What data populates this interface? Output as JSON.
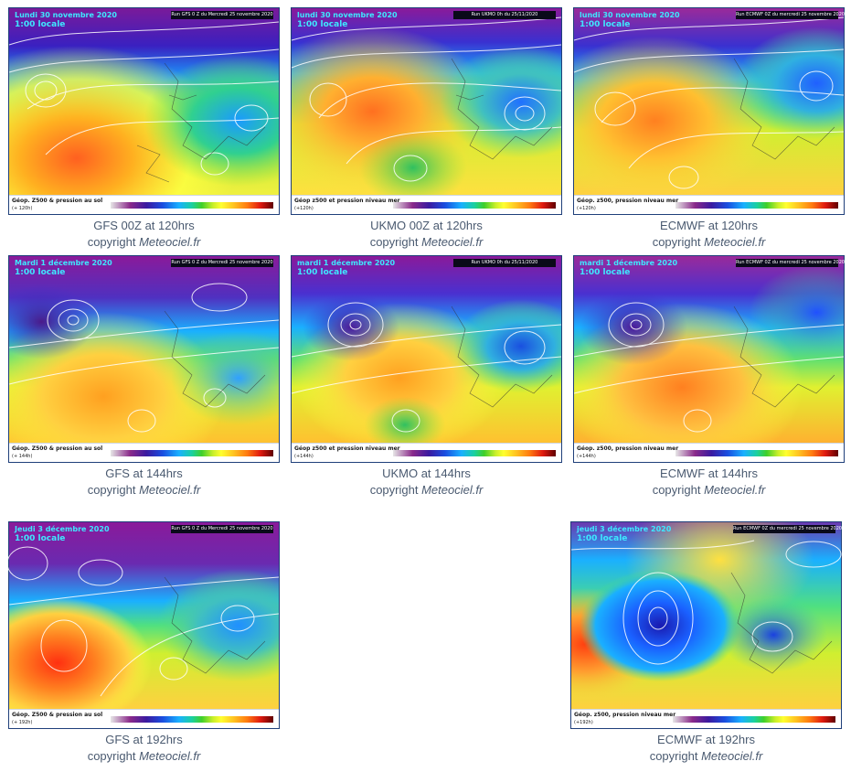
{
  "maps": [
    {
      "id": "gfs120",
      "model": "GFS",
      "date_label": "Lundi 30 novembre 2020",
      "time_label": "1:00 locale",
      "run_label": "Run GFS 0 Z du Mercredi 25 novembre 2020",
      "legend_title": "Géop. Z500 & pression au sol",
      "legend_hour": "(+ 120h)",
      "caption": "GFS 00Z at 120hrs",
      "copyright_prefix": "copyright ",
      "copyright_site": "Meteociel.fr",
      "palette": "gfs"
    },
    {
      "id": "ukmo120",
      "model": "UKMO",
      "date_label": "lundi 30 novembre 2020",
      "time_label": "1:00 locale",
      "run_label": "Run UKMO 0h du 25/11/2020",
      "legend_title": "Géop z500 et pression niveau mer",
      "legend_hour": "(+120h)",
      "caption": "UKMO 00Z at 120hrs",
      "copyright_prefix": "copyright ",
      "copyright_site": "Meteociel.fr",
      "palette": "ukmo"
    },
    {
      "id": "ecmwf120",
      "model": "ECMWF",
      "date_label": "lundi 30 novembre 2020",
      "time_label": "1:00 locale",
      "run_label": "Run ECMWF 0Z du mercredi 25 novembre 2020",
      "legend_title": "Géop. z500, pression niveau mer",
      "legend_hour": "(+120h)",
      "caption": "ECMWF at 120hrs",
      "copyright_prefix": "copyright ",
      "copyright_site": "Meteociel.fr",
      "palette": "ecmwf"
    },
    {
      "id": "gfs144",
      "model": "GFS",
      "date_label": "Mardi 1 décembre 2020",
      "time_label": "1:00 locale",
      "run_label": "Run GFS 0 Z du Mercredi 25 novembre 2020",
      "legend_title": "Géop. Z500 & pression au sol",
      "legend_hour": "(+ 144h)",
      "caption": "GFS at 144hrs",
      "copyright_prefix": "copyright ",
      "copyright_site": "Meteociel.fr",
      "palette": "gfs2"
    },
    {
      "id": "ukmo144",
      "model": "UKMO",
      "date_label": "mardi 1 décembre 2020",
      "time_label": "1:00 locale",
      "run_label": "Run UKMO 0h du 25/11/2020",
      "legend_title": "Géop z500 et pression niveau mer",
      "legend_hour": "(+144h)",
      "caption": "UKMO at 144hrs",
      "copyright_prefix": "copyright ",
      "copyright_site": "Meteociel.fr",
      "palette": "ukmo2"
    },
    {
      "id": "ecmwf144",
      "model": "ECMWF",
      "date_label": "mardi 1 décembre 2020",
      "time_label": "1:00 locale",
      "run_label": "Run ECMWF 0Z du mercredi 25 novembre 2020",
      "legend_title": "Géop. z500, pression niveau mer",
      "legend_hour": "(+144h)",
      "caption": "ECMWF at 144hrs",
      "copyright_prefix": "copyright ",
      "copyright_site": "Meteociel.fr",
      "palette": "ecmwf2"
    },
    {
      "id": "gfs192",
      "model": "GFS",
      "date_label": "Jeudi 3 décembre 2020",
      "time_label": "1:00 locale",
      "run_label": "Run GFS 0 Z du Mercredi 25 novembre 2020",
      "legend_title": "Géop. Z500 & pression au sol",
      "legend_hour": "(+ 192h)",
      "caption": "GFS at 192hrs",
      "copyright_prefix": "copyright ",
      "copyright_site": "Meteociel.fr",
      "palette": "gfs3"
    },
    {
      "id": "ecmwf192",
      "model": "ECMWF",
      "date_label": "jeudi 3 décembre 2020",
      "time_label": "1:00 locale",
      "run_label": "Run ECMWF 0Z du mercredi 25 novembre 2020",
      "legend_title": "Géop. z500, pression niveau mer",
      "legend_hour": "(+192h)",
      "caption": "ECMWF at 192hrs",
      "copyright_prefix": "copyright ",
      "copyright_site": "Meteociel.fr",
      "palette": "ecmwf3"
    }
  ]
}
